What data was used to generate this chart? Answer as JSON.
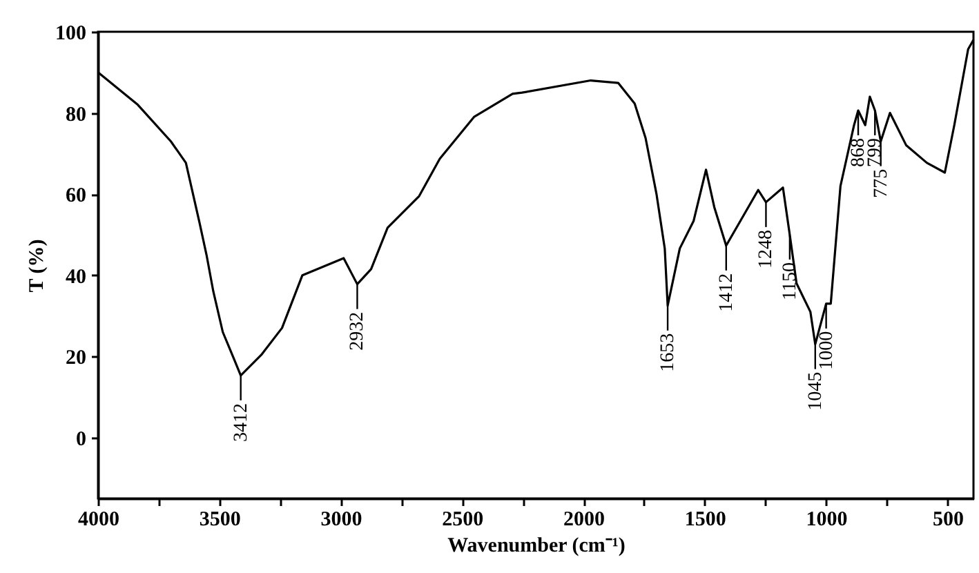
{
  "chart_data": {
    "type": "line",
    "xlabel": "Wavenumber (cm⁻¹)",
    "ylabel": "T (%)",
    "x": [
      4000,
      3836,
      3700,
      3638,
      3582,
      3553,
      3525,
      3486,
      3440,
      3412,
      3327,
      3242,
      3158,
      2988,
      2932,
      2875,
      2807,
      2677,
      2592,
      2451,
      2292,
      2253,
      1970,
      1857,
      1789,
      1744,
      1699,
      1665,
      1653,
      1603,
      1546,
      1495,
      1461,
      1412,
      1280,
      1248,
      1178,
      1150,
      1122,
      1065,
      1045,
      1000,
      981,
      941,
      885,
      868,
      839,
      820,
      799,
      775,
      737,
      670,
      585,
      511,
      472,
      415,
      393
    ],
    "series": [
      {
        "color": "#000000",
        "values": [
          90,
          82,
          73,
          67.7,
          53,
          45,
          36,
          26,
          19.4,
          15.3,
          20.4,
          27,
          40,
          44.2,
          37.8,
          41.5,
          51.7,
          59.5,
          68.7,
          79,
          84.7,
          85,
          88,
          87.4,
          82.3,
          73.8,
          60,
          46.6,
          32.5,
          46.6,
          53.4,
          66,
          56.8,
          47.3,
          61,
          58,
          61.6,
          50,
          38,
          31,
          23,
          33,
          33,
          62,
          77,
          80.6,
          77,
          84,
          80.6,
          73,
          80,
          72,
          67.7,
          65.3,
          77,
          95.7,
          98
        ]
      }
    ],
    "xlim": [
      4000,
      393
    ],
    "ylim": [
      -15,
      100
    ],
    "xticks": [
      4000,
      {
        "value": 3750,
        "label": null
      },
      3500,
      {
        "value": 3250,
        "label": null
      },
      3000,
      {
        "value": 2750,
        "label": null
      },
      2500,
      {
        "value": 2250,
        "label": null
      },
      2000,
      {
        "value": 1750,
        "label": null
      },
      1500,
      {
        "value": 1250,
        "label": null
      },
      1000,
      {
        "value": 750,
        "label": null
      },
      500
    ],
    "yticks": [
      0,
      20,
      40,
      60,
      80,
      100
    ],
    "annotations": [
      {
        "text": "3412",
        "x": 3412,
        "y": 15.3
      },
      {
        "text": "2932",
        "x": 2932,
        "y": 37.8
      },
      {
        "text": "1653",
        "x": 1653,
        "y": 32.5
      },
      {
        "text": "1412",
        "x": 1412,
        "y": 47.3
      },
      {
        "text": "1248",
        "x": 1248,
        "y": 58
      },
      {
        "text": "1150",
        "x": 1150,
        "y": 50
      },
      {
        "text": "1045",
        "x": 1045,
        "y": 23
      },
      {
        "text": "1000",
        "x": 1000,
        "y": 33
      },
      {
        "text": "868",
        "x": 868,
        "y": 80.6
      },
      {
        "text": "799",
        "x": 799,
        "y": 80.6
      },
      {
        "text": "775",
        "x": 775,
        "y": 73
      }
    ],
    "grid": false,
    "legend": false,
    "marker": "none",
    "line_style": "solid"
  }
}
